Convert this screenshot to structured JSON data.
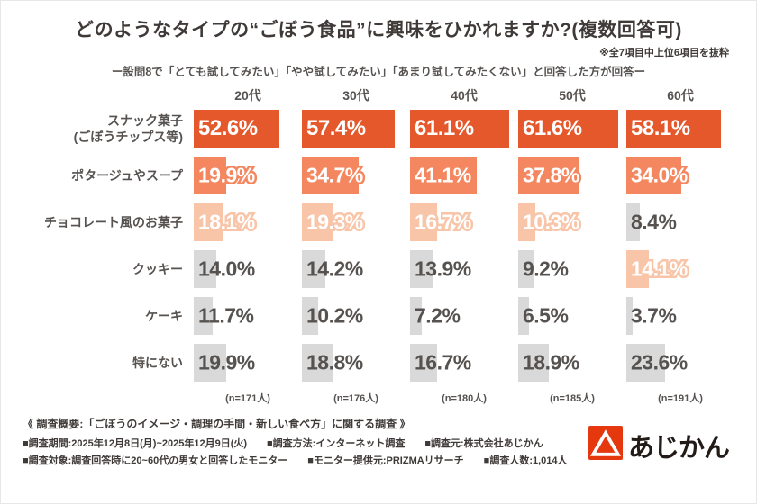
{
  "header": {
    "title": "どのようなタイプの“ごぼう食品”に興味をひかれますか?(複数回答可)",
    "note": "※全7項目中上位6項目を抜粋",
    "subtitle": "ー設問8で「とても試してみたい」「やや試してみたい」「あまり試してみたくない」と回答した方が回答ー"
  },
  "chart_data": {
    "type": "bar",
    "orientation": "horizontal",
    "unit": "%",
    "xlim": [
      0,
      65
    ],
    "columns": [
      "20代",
      "30代",
      "40代",
      "50代",
      "60代"
    ],
    "column_n": [
      "(n=171人)",
      "(n=176人)",
      "(n=180人)",
      "(n=185人)",
      "(n=191人)"
    ],
    "rows": [
      {
        "label": "スナック菓子",
        "label2": "(ごぼうチップス等)",
        "values": [
          52.6,
          57.4,
          61.1,
          61.6,
          58.1
        ]
      },
      {
        "label": "ポタージュやスープ",
        "values": [
          19.9,
          34.7,
          41.1,
          37.8,
          34.0
        ]
      },
      {
        "label": "チョコレート風のお菓子",
        "values": [
          18.1,
          19.3,
          16.7,
          10.3,
          8.4
        ]
      },
      {
        "label": "クッキー",
        "values": [
          14.0,
          14.2,
          13.9,
          9.2,
          14.1
        ]
      },
      {
        "label": "ケーキ",
        "values": [
          11.7,
          10.2,
          7.2,
          6.5,
          3.7
        ]
      },
      {
        "label": "特にない",
        "values": [
          19.9,
          18.8,
          16.7,
          18.9,
          23.6
        ]
      }
    ],
    "cell_tiers": [
      [
        "t1",
        "t1",
        "t1",
        "t1",
        "t1"
      ],
      [
        "t2",
        "t2",
        "t2",
        "t2",
        "t2"
      ],
      [
        "t3",
        "t3",
        "t3",
        "t3",
        "gray"
      ],
      [
        "gray",
        "gray",
        "gray",
        "gray",
        "t3"
      ],
      [
        "gray",
        "gray",
        "gray",
        "gray",
        "gray"
      ],
      [
        "gray",
        "gray",
        "gray",
        "gray",
        "gray"
      ]
    ]
  },
  "colors": {
    "tier1": "#e4582b",
    "tier2": "#f4875f",
    "tier3": "#f8c5a9",
    "bargray": "#d9d9d9",
    "text-dark": "#3f3a38",
    "text-gray": "#565250",
    "logo-red": "#e6380f"
  },
  "footer": {
    "line1": "《 調査概要:「ごぼうのイメージ・調理の手間・新しい食べ方」に関する調査 》",
    "line2": "■調査期間:2025年12月8日(月)~2025年12月9日(火)　　■調査方法:インターネット調査　　■調査元:株式会社あじかん",
    "line3": "■調査対象:調査回答時に20~60代の男女と回答したモニター　　■モニター提供元:PRIZMAリサーチ　　■調査人数:1,014人",
    "logo_text": "あじかん"
  }
}
